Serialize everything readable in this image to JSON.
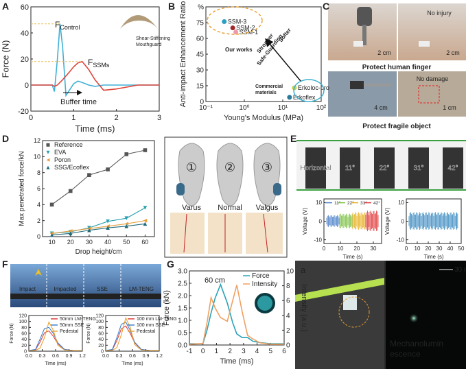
{
  "panel_labels": [
    "A",
    "B",
    "C",
    "D",
    "E",
    "F",
    "G"
  ],
  "chart_data": [
    {
      "type": "line",
      "xlabel": "Time (ms)",
      "ylabel": "Force (N)",
      "xlim": [
        0,
        3
      ],
      "ylim": [
        -20,
        60
      ],
      "xticks": [
        0,
        1,
        2,
        3
      ],
      "yticks": [
        -20,
        0,
        20,
        40,
        60
      ],
      "x": [
        0,
        0.3,
        0.5,
        0.55,
        0.62,
        0.68,
        0.74,
        0.82,
        0.9,
        1.0,
        1.1,
        1.2,
        1.35,
        1.5,
        1.7,
        2.0,
        2.5,
        3.0
      ],
      "series": [
        {
          "name": "Control",
          "color": "#3fb0d6",
          "values": [
            0,
            0,
            0,
            -5,
            20,
            47,
            30,
            -8,
            -4,
            1,
            3,
            2,
            0,
            -1,
            0,
            0,
            0,
            0
          ]
        },
        {
          "name": "SSMs",
          "color": "#e0443a",
          "values": [
            0,
            0,
            0,
            -1,
            0,
            2,
            4,
            7,
            10,
            14,
            17,
            18,
            12,
            4,
            -4,
            -3,
            0,
            0
          ]
        }
      ],
      "annotations": [
        {
          "text": "F",
          "sub": "Control"
        },
        {
          "text": "F",
          "sub": "SSMs"
        },
        "Buffer time",
        "Shear-Stiffening",
        "Mouthguard"
      ]
    },
    {
      "type": "scatter",
      "xlabel": "Young's Modulus (MPa)",
      "ylabel": "Anti-impact Enhancement Ratio",
      "xlog": true,
      "xlim": [
        0.1,
        100
      ],
      "ylim": [
        0,
        90
      ],
      "xticks": [
        {
          "value": 0.1,
          "label": "10⁻¹"
        },
        {
          "value": 1,
          "label": "10⁰"
        },
        {
          "value": 10,
          "label": "10¹"
        },
        {
          "value": 100,
          "label": "10²"
        }
      ],
      "yticks": [
        0,
        15,
        30,
        45,
        60,
        75,
        {
          "value": 90,
          "label": "%"
        }
      ],
      "series": [
        {
          "name": "SSM-3",
          "color": "#2b9fc0",
          "x": [
            0.3
          ],
          "values": [
            76
          ]
        },
        {
          "name": "SSM-2",
          "color": "#a0282a",
          "x": [
            0.5
          ],
          "values": [
            70
          ]
        },
        {
          "name": "SSM-1",
          "color": "#f09aa8",
          "x": [
            0.6
          ],
          "values": [
            66
          ]
        },
        {
          "name": "Erkoloc-pro",
          "color": "#c8d040",
          "x": [
            20
          ],
          "values": [
            13
          ]
        },
        {
          "name": "Erkoflex",
          "color": "#2a7a9a",
          "x": [
            15
          ],
          "values": [
            4
          ]
        }
      ],
      "annotations": [
        "Our works",
        "Softer",
        "Stronger",
        "Safe-Guarding",
        "Commercial",
        "materials"
      ]
    },
    {
      "type": "line",
      "xlabel": "Drop height/cm",
      "ylabel": "Max penetrated force/kN",
      "xlim": [
        5,
        65
      ],
      "ylim": [
        0,
        12
      ],
      "xticks": [
        10,
        20,
        30,
        40,
        50,
        60
      ],
      "yticks": [
        0,
        2,
        4,
        6,
        8,
        10,
        12
      ],
      "legend": "upper left",
      "x": [
        10,
        20,
        30,
        40,
        50,
        60
      ],
      "series": [
        {
          "name": "Reference",
          "color": "#555555",
          "marker": "square",
          "values": [
            4,
            5.7,
            7.7,
            8.4,
            10.3,
            10.8
          ]
        },
        {
          "name": "EVA",
          "color": "#2aa0b0",
          "marker": "triangle-down",
          "values": [
            0.4,
            0.6,
            1.1,
            1.9,
            2.3,
            3.6
          ]
        },
        {
          "name": "Poron",
          "color": "#e6a040",
          "marker": "triangle-left",
          "values": [
            0.4,
            0.7,
            1.0,
            1.3,
            1.6,
            2.0
          ]
        },
        {
          "name": "SSG/Ecoflex",
          "color": "#1f6a7a",
          "marker": "triangle-up",
          "values": [
            0.2,
            0.4,
            0.8,
            1.1,
            1.3,
            1.6
          ]
        }
      ]
    },
    {
      "type": "line",
      "xlabel": "Time (s)",
      "ylabel": "Voltage (V)",
      "xlim": [
        0,
        35
      ],
      "ylim": [
        -12,
        12
      ],
      "xticks": [
        0,
        10,
        20,
        30
      ],
      "yticks": [
        -10,
        0,
        10
      ],
      "legend": "upper center",
      "series": [
        {
          "name": "11°",
          "color": "#4a7fc8"
        },
        {
          "name": "22°",
          "color": "#7cc040"
        },
        {
          "name": "31°",
          "color": "#e8b020"
        },
        {
          "name": "42°",
          "color": "#e03838"
        }
      ]
    },
    {
      "type": "line",
      "xlabel": "Time (s)",
      "ylabel": "Voltage (V)",
      "xlim": [
        0,
        50
      ],
      "ylim": [
        -12,
        12
      ],
      "xticks": [
        0,
        10,
        20,
        30,
        40,
        50
      ],
      "yticks": [
        -10,
        0,
        10
      ],
      "series": [
        {
          "color": "#3a8ac0"
        }
      ]
    },
    {
      "type": "line",
      "xlabel": "Time (ms)",
      "ylabel": "Force (N)",
      "xlim": [
        0,
        1.2
      ],
      "ylim": [
        0,
        120
      ],
      "legend": "upper right",
      "xticks": [
        {
          "value": 0,
          "label": "0.0"
        },
        0.3,
        0.6,
        0.9,
        1.2
      ],
      "yticks": [
        0,
        20,
        40,
        60,
        80,
        100,
        120
      ],
      "x": [
        0,
        0.15,
        0.25,
        0.35,
        0.45,
        0.55,
        0.65,
        0.8,
        1.0,
        1.2
      ],
      "series": [
        {
          "name": "50mm LM-TENG",
          "color": "#e04040",
          "values": [
            2,
            5,
            30,
            62,
            68,
            50,
            25,
            6,
            2,
            2
          ]
        },
        {
          "name": "50mm SSE",
          "color": "#3a7fd0",
          "values": [
            2,
            6,
            40,
            76,
            80,
            60,
            28,
            6,
            2,
            2
          ]
        },
        {
          "name": "Pedestal",
          "color": "#e8a030",
          "values": [
            2,
            3,
            10,
            45,
            98,
            70,
            20,
            4,
            2,
            2
          ]
        }
      ]
    },
    {
      "type": "line",
      "xlabel": "Time (ms)",
      "ylabel": "Force (N)",
      "xlim": [
        0,
        1.2
      ],
      "ylim": [
        0,
        120
      ],
      "legend": "upper right",
      "xticks": [
        {
          "value": 0,
          "label": "0.0"
        },
        0.3,
        0.6,
        0.9,
        1.2
      ],
      "yticks": [
        0,
        20,
        40,
        60,
        80,
        100,
        120
      ],
      "x": [
        0,
        0.15,
        0.25,
        0.35,
        0.45,
        0.55,
        0.65,
        0.8,
        1.0,
        1.2
      ],
      "series": [
        {
          "name": "100 mm LM-TENG",
          "color": "#e04040",
          "values": [
            2,
            5,
            35,
            75,
            85,
            60,
            28,
            6,
            2,
            2
          ]
        },
        {
          "name": "100 mm SSE",
          "color": "#3a7fd0",
          "values": [
            2,
            6,
            45,
            90,
            98,
            70,
            30,
            6,
            2,
            2
          ]
        },
        {
          "name": "Pedestal",
          "color": "#e8a030",
          "values": [
            2,
            3,
            12,
            55,
            112,
            80,
            22,
            4,
            2,
            2
          ]
        }
      ]
    },
    {
      "type": "line",
      "xlabel": "Time (ms)",
      "ylabel": "Force (kN)",
      "y2label": "Intensity (a.u.)",
      "xlim": [
        -1,
        6
      ],
      "ylim": [
        0,
        3
      ],
      "y2lim": [
        0,
        10
      ],
      "legend": "upper right",
      "xticks": [
        -1,
        0,
        1,
        2,
        3,
        4,
        5,
        6
      ],
      "yticks": [
        {
          "value": 0,
          "label": "0.0"
        },
        {
          "value": 0.5,
          "label": "0.5"
        },
        {
          "value": 1,
          "label": "1.0"
        },
        {
          "value": 1.5,
          "label": "1.5"
        },
        {
          "value": 2,
          "label": "2.0"
        },
        {
          "value": 2.5,
          "label": "2.5"
        },
        {
          "value": 3,
          "label": "3.0"
        }
      ],
      "y2ticks": [
        0,
        2,
        4,
        6,
        8,
        10
      ],
      "x": [
        -1,
        0,
        0.3,
        0.6,
        0.9,
        1.3,
        1.8,
        2.2,
        2.5,
        2.9,
        3.3,
        3.7,
        4.2,
        5,
        6
      ],
      "series": [
        {
          "name": "Force",
          "color": "#2aa3b8",
          "values": [
            0.05,
            0.05,
            0.6,
            1.3,
            1.9,
            2.45,
            1.7,
            0.9,
            0.45,
            0.3,
            0.3,
            0.15,
            0.1,
            0.05,
            0.05
          ]
        },
        {
          "name": "Intensity",
          "color": "#f0a060",
          "axis": "y2",
          "values": [
            0.1,
            0.2,
            3,
            6.4,
            5,
            3.7,
            3.2,
            6,
            8.1,
            4.5,
            1.3,
            0.8,
            0.3,
            0.1,
            0.1
          ]
        }
      ],
      "annotations": [
        "60 cm"
      ]
    }
  ],
  "photos": {
    "c": {
      "texts": [
        "2 cm",
        "No injury",
        "2 cm",
        "No damage",
        "4 cm",
        "1 cm"
      ],
      "captions": [
        "Protect human finger",
        "Protect fragile object"
      ]
    },
    "d": {
      "numbers": [
        "①",
        "②",
        "③"
      ],
      "labels": [
        "Varus",
        "Normal",
        "Valgus"
      ]
    },
    "e": {
      "angles": [
        "Horizontal",
        "11°",
        "22°",
        "31°",
        "42°"
      ]
    },
    "f": {
      "labels": [
        "Impact",
        "Impacted",
        "SSE",
        "LM-TENG"
      ]
    },
    "h": {
      "label": "a",
      "scale": "30 mm",
      "caption": [
        "Mechanolumin",
        "escence"
      ]
    }
  }
}
